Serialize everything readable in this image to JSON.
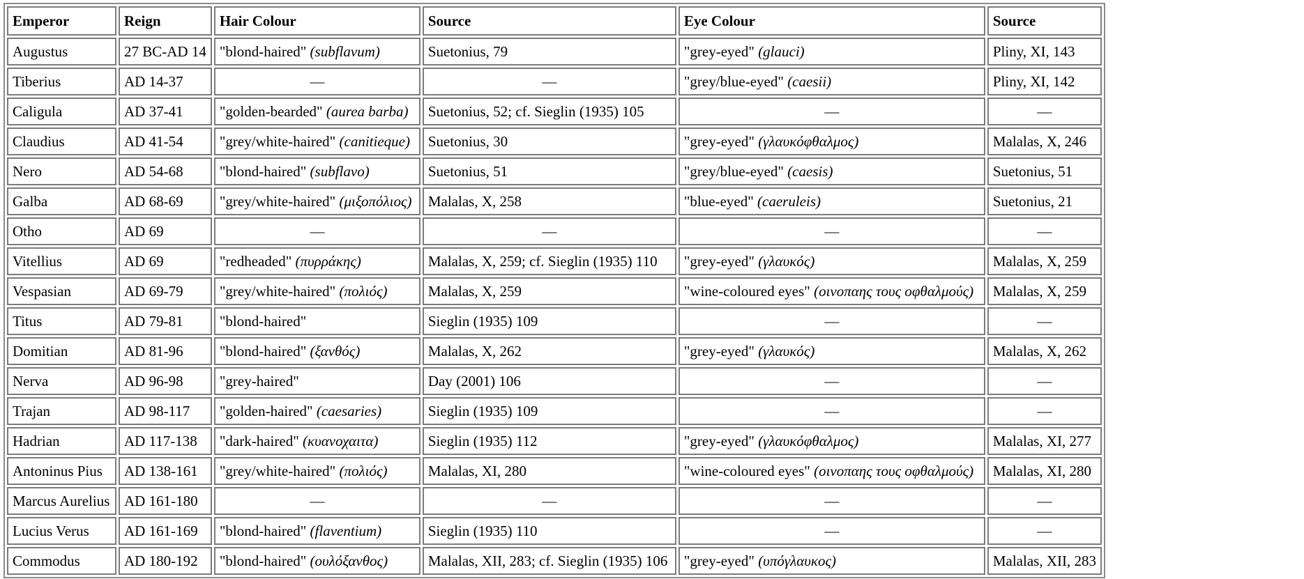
{
  "table": {
    "headers": [
      "Emperor",
      "Reign",
      "Hair Colour",
      "Source",
      "Eye Colour",
      "Source"
    ],
    "rows": [
      {
        "emperor": "Augustus",
        "reign": "27 BC-AD 14",
        "hair": "\"blond-haired\"",
        "hair_gloss": "(subflavum)",
        "hair_source": "Suetonius, 79",
        "eye": "\"grey-eyed\"",
        "eye_gloss": "(glauci)",
        "eye_source": "Pliny, XI, 143"
      },
      {
        "emperor": "Tiberius",
        "reign": "AD 14-37",
        "hair": "—",
        "hair_gloss": "",
        "hair_source": "—",
        "eye": "\"grey/blue-eyed\"",
        "eye_gloss": "(caesii)",
        "eye_source": "Pliny, XI, 142"
      },
      {
        "emperor": "Caligula",
        "reign": "AD 37-41",
        "hair": "\"golden-bearded\"",
        "hair_gloss": "(aurea barba)",
        "hair_source": "Suetonius, 52; cf. Sieglin (1935) 105",
        "eye": "—",
        "eye_gloss": "",
        "eye_source": "—"
      },
      {
        "emperor": "Claudius",
        "reign": "AD 41-54",
        "hair": "\"grey/white-haired\"",
        "hair_gloss": "(canitieque)",
        "hair_source": "Suetonius, 30",
        "eye": "\"grey-eyed\"",
        "eye_gloss": "(γλαυκόφθαλμος)",
        "eye_source": "Malalas, X, 246"
      },
      {
        "emperor": "Nero",
        "reign": "AD 54-68",
        "hair": "\"blond-haired\"",
        "hair_gloss": "(subflavo)",
        "hair_source": "Suetonius, 51",
        "eye": "\"grey/blue-eyed\"",
        "eye_gloss": "(caesis)",
        "eye_source": "Suetonius, 51"
      },
      {
        "emperor": "Galba",
        "reign": "AD 68-69",
        "hair": "\"grey/white-haired\"",
        "hair_gloss": "(μιξοπόλιος)",
        "hair_source": "Malalas, X, 258",
        "eye": "\"blue-eyed\"",
        "eye_gloss": "(caeruleis)",
        "eye_source": "Suetonius, 21"
      },
      {
        "emperor": "Otho",
        "reign": "AD 69",
        "hair": "—",
        "hair_gloss": "",
        "hair_source": "—",
        "eye": "—",
        "eye_gloss": "",
        "eye_source": "—"
      },
      {
        "emperor": "Vitellius",
        "reign": "AD 69",
        "hair": "\"redheaded\"",
        "hair_gloss": "(πυρράκης)",
        "hair_source": "Malalas, X, 259; cf. Sieglin (1935) 110",
        "eye": "\"grey-eyed\"",
        "eye_gloss": "(γλαυκός)",
        "eye_source": "Malalas, X, 259"
      },
      {
        "emperor": "Vespasian",
        "reign": "AD 69-79",
        "hair": "\"grey/white-haired\"",
        "hair_gloss": "(πολιός)",
        "hair_source": "Malalas, X, 259",
        "eye": "\"wine-coloured eyes\"",
        "eye_gloss": "(οινοπαης τους οφθαλμούς)",
        "eye_source": "Malalas, X, 259"
      },
      {
        "emperor": "Titus",
        "reign": "AD 79-81",
        "hair": "\"blond-haired\"",
        "hair_gloss": "",
        "hair_source": "Sieglin (1935) 109",
        "eye": "—",
        "eye_gloss": "",
        "eye_source": "—"
      },
      {
        "emperor": "Domitian",
        "reign": "AD 81-96",
        "hair": "\"blond-haired\"",
        "hair_gloss": "(ξανθός)",
        "hair_source": "Malalas, X, 262",
        "eye": "\"grey-eyed\"",
        "eye_gloss": "(γλαυκός)",
        "eye_source": "Malalas, X, 262"
      },
      {
        "emperor": "Nerva",
        "reign": "AD 96-98",
        "hair": "\"grey-haired\"",
        "hair_gloss": "",
        "hair_source": "Day (2001) 106",
        "eye": "—",
        "eye_gloss": "",
        "eye_source": "—"
      },
      {
        "emperor": "Trajan",
        "reign": "AD 98-117",
        "hair": "\"golden-haired\"",
        "hair_gloss": "(caesaries)",
        "hair_source": "Sieglin (1935) 109",
        "eye": "—",
        "eye_gloss": "",
        "eye_source": "—"
      },
      {
        "emperor": "Hadrian",
        "reign": "AD 117-138",
        "hair": "\"dark-haired\"",
        "hair_gloss": "(κυανοχαιτα)",
        "hair_source": "Sieglin (1935) 112",
        "eye": "\"grey-eyed\"",
        "eye_gloss": "(γλαυκόφθαλμος)",
        "eye_source": "Malalas, XI, 277"
      },
      {
        "emperor": "Antoninus Pius",
        "reign": "AD 138-161",
        "hair": "\"grey/white-haired\"",
        "hair_gloss": "(πολιός)",
        "hair_source": "Malalas, XI, 280",
        "eye": "\"wine-coloured eyes\"",
        "eye_gloss": "(οινοπαης τους οφθαλμούς)",
        "eye_source": "Malalas, XI, 280"
      },
      {
        "emperor": "Marcus Aurelius",
        "reign": "AD 161-180",
        "hair": "—",
        "hair_gloss": "",
        "hair_source": "—",
        "eye": "—",
        "eye_gloss": "",
        "eye_source": "—"
      },
      {
        "emperor": "Lucius Verus",
        "reign": "AD 161-169",
        "hair": "\"blond-haired\"",
        "hair_gloss": "(flaventium)",
        "hair_source": "Sieglin (1935) 110",
        "eye": "—",
        "eye_gloss": "",
        "eye_source": "—"
      },
      {
        "emperor": "Commodus",
        "reign": "AD 180-192",
        "hair": "\"blond-haired\"",
        "hair_gloss": "(ουλόξανθος)",
        "hair_source": "Malalas, XII, 283; cf. Sieglin (1935) 106",
        "eye": "\"grey-eyed\"",
        "eye_gloss": "(υπόγλαυκος)",
        "eye_source": "Malalas, XII, 283"
      }
    ]
  }
}
